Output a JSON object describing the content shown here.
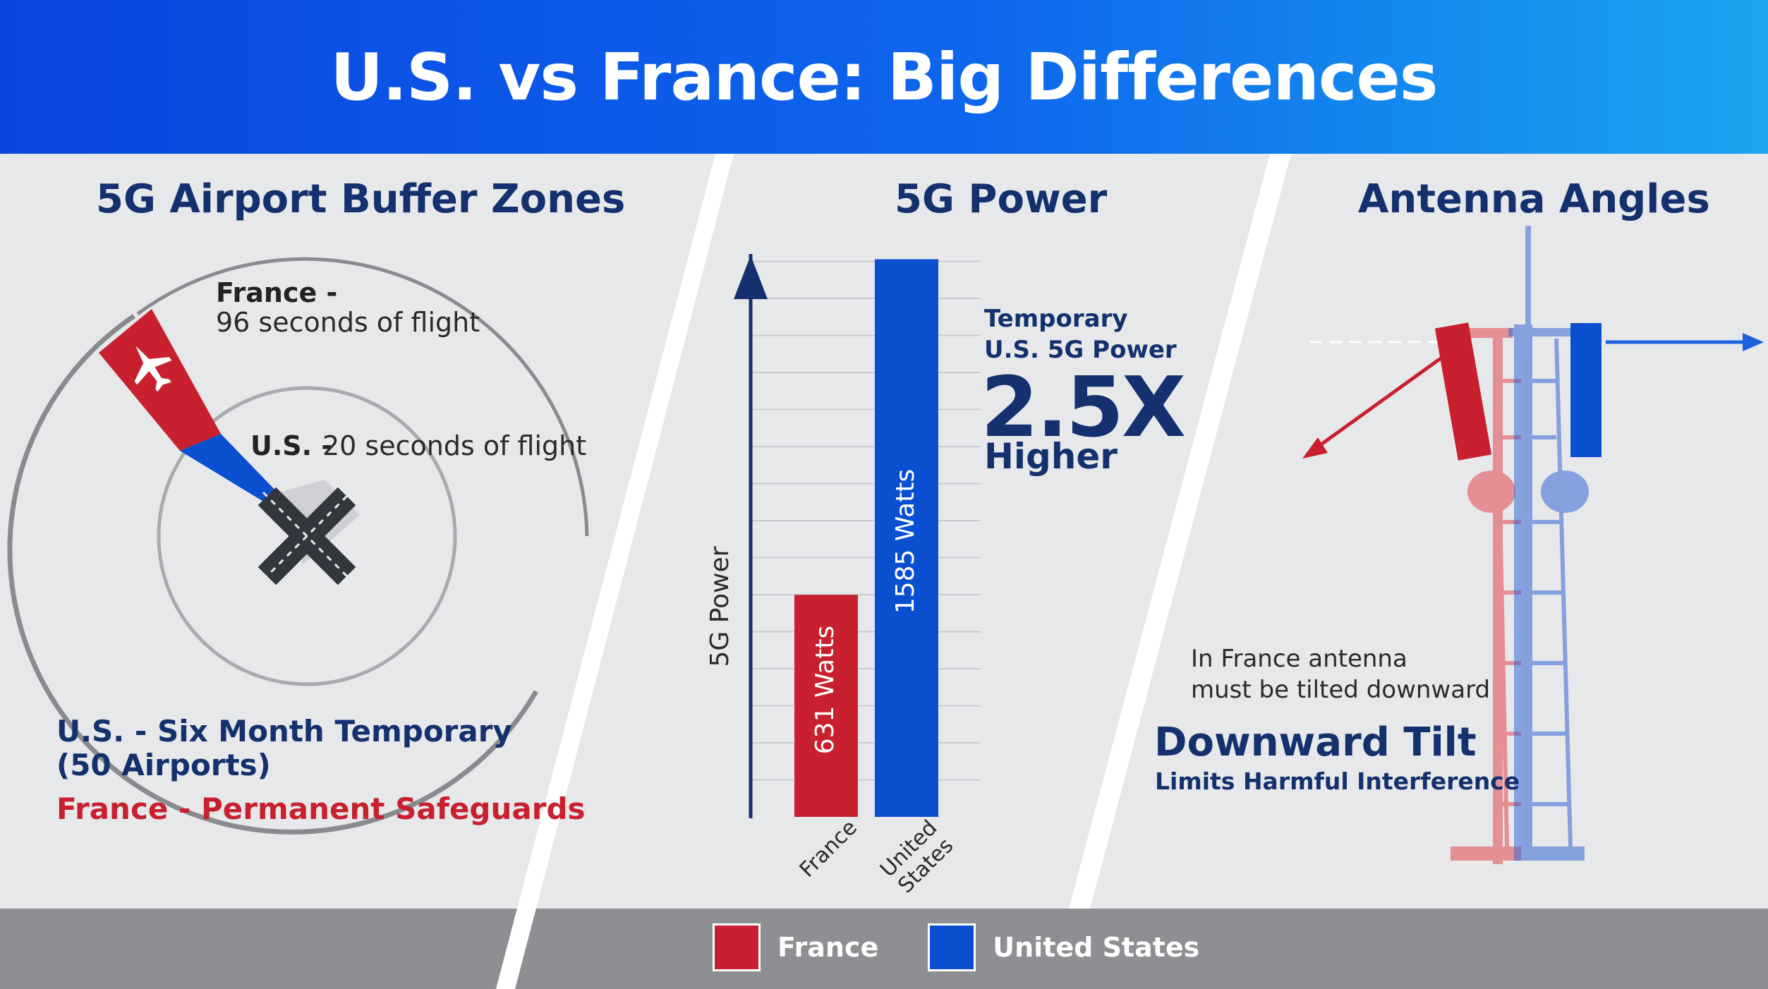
{
  "header": {
    "title": "U.S. vs France: Big Differences"
  },
  "panels": {
    "buffer": {
      "title": "5G Airport Buffer Zones",
      "france_label": "France -",
      "france_detail": "96 seconds of flight",
      "us_label": "U.S. -",
      "us_detail": "20 seconds of flight",
      "note_us_line1": "U.S. - Six Month Temporary",
      "note_us_line2": "(50 Airports)",
      "note_france": "France - Permanent Safeguards"
    },
    "power": {
      "title": "5G Power",
      "callout_line1": "Temporary",
      "callout_line2": "U.S. 5G Power",
      "callout_big": "2.5X",
      "callout_line3": "Higher"
    },
    "antenna": {
      "title": "Antenna Angles",
      "note_line1": "In France antenna",
      "note_line2": "must be tilted downward",
      "emphasis": "Downward Tilt",
      "emphasis_sub": "Limits Harmful Interference"
    }
  },
  "chart_data": {
    "type": "bar",
    "ylabel": "5G Power",
    "categories": [
      "France",
      "United States"
    ],
    "category_tick_lines": [
      [
        "France"
      ],
      [
        "United",
        "States"
      ]
    ],
    "values": [
      631,
      1585
    ],
    "data_labels": [
      "631 Watts",
      "1585 Watts"
    ],
    "unit": "Watts",
    "ylim": [
      0,
      1600
    ],
    "grid": true
  },
  "legend": [
    {
      "label": "France",
      "color": "#c8202e"
    },
    {
      "label": "United States",
      "color": "#0a4fd0"
    }
  ],
  "colors": {
    "navy": "#14306e",
    "france_red": "#c8202e",
    "us_blue": "#0a4fd0",
    "header_blue": "#0e66ec"
  }
}
